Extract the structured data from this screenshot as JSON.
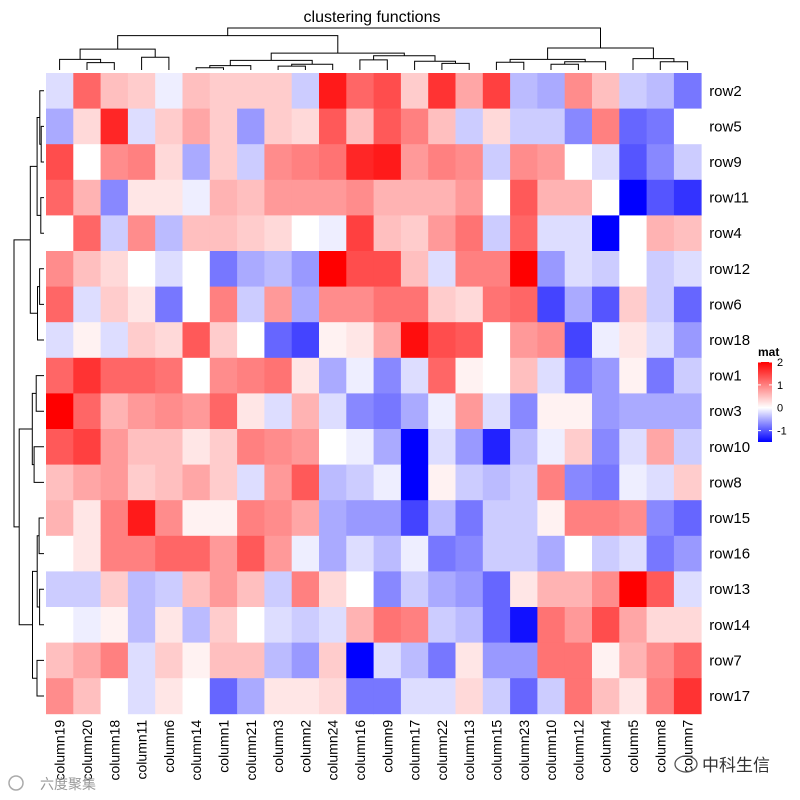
{
  "chart_data": {
    "type": "heatmap",
    "title": "clustering functions",
    "columns": [
      "column19",
      "column20",
      "column18",
      "column11",
      "column6",
      "column14",
      "column1",
      "column21",
      "column3",
      "column2",
      "column24",
      "column16",
      "column9",
      "column17",
      "column22",
      "column13",
      "column15",
      "column23",
      "column10",
      "column12",
      "column4",
      "column5",
      "column8",
      "column7"
    ],
    "rows": [
      "row2",
      "row5",
      "row9",
      "row11",
      "row4",
      "row12",
      "row6",
      "row18",
      "row1",
      "row3",
      "row10",
      "row8",
      "row15",
      "row16",
      "row13",
      "row14",
      "row7",
      "row17"
    ],
    "values": [
      [
        -0.2,
        1.2,
        0.5,
        0.4,
        -0.1,
        0.5,
        0.4,
        0.4,
        0.4,
        -0.3,
        1.8,
        1.2,
        1.4,
        0.4,
        1.6,
        0.7,
        1.5,
        -0.4,
        -0.5,
        0.9,
        0.5,
        -0.3,
        -0.4,
        -0.8
      ],
      [
        -0.5,
        0.3,
        1.7,
        -0.2,
        0.4,
        0.7,
        0.4,
        -0.6,
        0.4,
        0.3,
        1.3,
        0.5,
        1.3,
        1.0,
        0.5,
        -0.3,
        0.3,
        -0.3,
        -0.3,
        -0.7,
        1.0,
        -0.9,
        -0.8,
        0.0
      ],
      [
        1.4,
        0.0,
        0.9,
        1.0,
        0.3,
        -0.5,
        0.4,
        -0.3,
        0.9,
        1.0,
        1.1,
        1.7,
        1.8,
        0.8,
        1.0,
        0.9,
        -0.3,
        0.9,
        0.8,
        0.0,
        -0.2,
        -1.0,
        -0.7,
        -0.3
      ],
      [
        1.2,
        0.6,
        -0.7,
        0.2,
        0.2,
        -0.1,
        0.6,
        0.5,
        0.8,
        0.8,
        0.8,
        0.9,
        0.6,
        0.6,
        0.6,
        0.8,
        0.0,
        1.3,
        0.6,
        0.6,
        0.0,
        -1.5,
        -1.0,
        -1.2
      ],
      [
        0.0,
        1.2,
        -0.3,
        0.9,
        -0.4,
        0.5,
        0.5,
        0.4,
        0.3,
        0.0,
        -0.1,
        1.5,
        0.5,
        0.4,
        0.8,
        1.1,
        -0.3,
        1.2,
        -0.2,
        -0.2,
        -1.5,
        0.0,
        0.6,
        0.5
      ],
      [
        0.9,
        0.5,
        0.3,
        0.0,
        -0.2,
        0.0,
        -0.8,
        -0.5,
        -0.4,
        -0.6,
        2.0,
        1.4,
        1.4,
        0.5,
        -0.2,
        1.0,
        1.0,
        2.0,
        -0.6,
        -0.2,
        -0.3,
        0.0,
        -0.3,
        -0.2
      ],
      [
        1.2,
        -0.2,
        0.4,
        0.2,
        -0.8,
        0.0,
        1.0,
        -0.3,
        0.8,
        -0.5,
        0.9,
        0.9,
        1.1,
        1.1,
        0.4,
        0.3,
        1.1,
        1.2,
        -1.1,
        -0.5,
        -1.0,
        0.4,
        -0.3,
        -0.9
      ],
      [
        -0.2,
        0.1,
        -0.2,
        0.4,
        0.3,
        1.3,
        0.4,
        0.0,
        -0.9,
        -1.1,
        0.1,
        0.2,
        0.7,
        1.9,
        1.4,
        1.3,
        0.0,
        0.8,
        0.9,
        -1.1,
        -0.1,
        0.2,
        -0.2,
        -0.6
      ],
      [
        1.2,
        1.6,
        1.2,
        1.2,
        1.1,
        0.0,
        0.9,
        1.0,
        1.1,
        0.2,
        -0.5,
        -0.1,
        -0.7,
        -0.2,
        1.2,
        0.1,
        0.0,
        0.5,
        -0.2,
        -0.8,
        -0.6,
        0.1,
        -0.8,
        -0.3
      ],
      [
        2.0,
        1.2,
        0.6,
        0.8,
        0.9,
        0.8,
        1.2,
        0.2,
        -0.2,
        0.6,
        -0.2,
        -0.7,
        -0.8,
        -0.5,
        -0.1,
        0.8,
        -0.2,
        -0.7,
        0.1,
        0.1,
        -0.6,
        -0.5,
        -0.5,
        -0.5
      ],
      [
        1.3,
        1.5,
        0.8,
        0.5,
        0.5,
        0.2,
        0.4,
        1.0,
        0.9,
        0.8,
        0.0,
        -0.1,
        -0.5,
        -1.5,
        -0.2,
        -0.6,
        -1.3,
        -0.4,
        -0.1,
        0.4,
        -0.7,
        -0.2,
        0.7,
        -0.3
      ],
      [
        0.5,
        0.7,
        0.8,
        0.4,
        0.5,
        0.7,
        0.4,
        -0.2,
        0.8,
        1.3,
        -0.4,
        -0.3,
        -0.1,
        -1.5,
        0.1,
        -0.3,
        -0.4,
        -0.3,
        1.0,
        -0.7,
        -0.8,
        -0.1,
        -0.2,
        0.4
      ],
      [
        0.6,
        0.2,
        1.0,
        1.8,
        0.9,
        0.1,
        0.1,
        1.0,
        0.9,
        0.7,
        -0.5,
        -0.6,
        -0.6,
        -1.1,
        -0.4,
        -0.8,
        -0.3,
        -0.3,
        0.1,
        1.0,
        1.0,
        0.9,
        -0.7,
        -0.9
      ],
      [
        0.0,
        0.2,
        1.0,
        1.0,
        1.2,
        1.2,
        0.8,
        1.3,
        0.8,
        -0.1,
        -0.5,
        -0.2,
        -0.4,
        -0.1,
        -0.8,
        -0.7,
        -0.3,
        -0.3,
        -0.5,
        0.0,
        -0.3,
        -0.2,
        -0.8,
        -0.6
      ],
      [
        -0.3,
        -0.3,
        0.4,
        -0.4,
        -0.3,
        0.5,
        0.8,
        0.5,
        -0.3,
        1.0,
        0.3,
        0.0,
        -0.7,
        -0.3,
        -0.5,
        -0.6,
        -0.9,
        0.2,
        0.6,
        0.6,
        0.9,
        2.0,
        1.3,
        -0.2
      ],
      [
        0.0,
        -0.1,
        0.1,
        -0.4,
        0.2,
        -0.4,
        0.4,
        0.0,
        -0.2,
        -0.3,
        -0.2,
        0.6,
        1.1,
        1.0,
        -0.3,
        -0.4,
        -0.9,
        -1.4,
        1.1,
        0.8,
        1.4,
        0.7,
        0.3,
        0.3
      ],
      [
        0.5,
        0.7,
        1.0,
        -0.2,
        0.4,
        0.1,
        0.5,
        0.5,
        -0.4,
        -0.6,
        0.4,
        -1.6,
        -0.2,
        -0.4,
        -0.8,
        0.2,
        -0.6,
        -0.6,
        1.1,
        1.1,
        0.1,
        0.6,
        0.9,
        1.2
      ],
      [
        0.9,
        0.5,
        0.0,
        -0.2,
        0.2,
        0.0,
        -0.9,
        -0.5,
        0.2,
        0.2,
        0.3,
        -0.8,
        -0.8,
        -0.2,
        -0.2,
        0.3,
        -0.3,
        -0.9,
        -0.3,
        1.1,
        0.5,
        0.2,
        1.0,
        1.6
      ]
    ],
    "color_scale": {
      "min_color": "#0000ff",
      "mid_color": "#ffffff",
      "max_color": "#ff0000",
      "min": -1.5,
      "mid": 0,
      "max": 2
    },
    "legend": {
      "title": "mat",
      "ticks": [
        "2",
        "1",
        "0",
        "-1"
      ],
      "tick_values": [
        2,
        1,
        0,
        -1
      ],
      "placement": "right"
    },
    "dendrograms": {
      "rows": "left",
      "columns": "top"
    },
    "grid": false
  },
  "watermarks": {
    "left": "六度聚集",
    "right": "中科生信"
  }
}
